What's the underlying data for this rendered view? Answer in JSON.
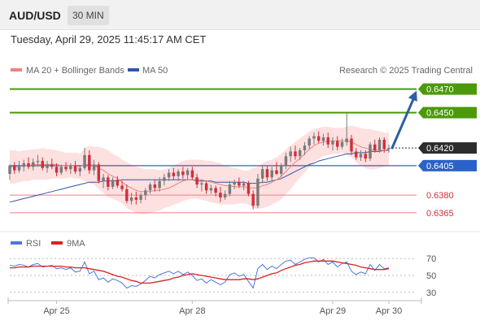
{
  "header": {
    "pair": "AUD/USD",
    "timeframe": "30 MIN",
    "timestamp": "Tuesday, April 29, 2025 11:45:17 AM CET"
  },
  "legend": {
    "ma20": "MA 20 + Bollinger Bands",
    "ma50": "MA 50",
    "source": "Research © 2025 Trading Central",
    "rsi": "RSI",
    "rsi_ma": "9MA"
  },
  "colors": {
    "ma20": "#f08080",
    "ma50": "#3355aa",
    "bollinger_fill": "#fde0e0",
    "resistance": "#4c9a0a",
    "support": "#f08080",
    "pivot": "#2b62c9",
    "last": "#2d2d2d",
    "candle_up": "#7a7a7a",
    "candle_down": "#d0303a",
    "arrow": "#2d5fa0",
    "rsi": "#4c78e0",
    "rsi_ma": "#dd2020"
  },
  "chart_data": [
    {
      "type": "candlestick",
      "instrument": "AUD/USD",
      "timeframe": "30 MIN",
      "x_labels": [
        "Apr 25",
        "Apr 28",
        "Apr 29",
        "Apr 30"
      ],
      "ylim": [
        0.6358,
        0.6478
      ],
      "levels": [
        {
          "label": "0.6470",
          "value": 0.647,
          "kind": "resistance"
        },
        {
          "label": "0.6450",
          "value": 0.645,
          "kind": "resistance"
        },
        {
          "label": "0.6420",
          "value": 0.642,
          "kind": "last"
        },
        {
          "label": "0.6405",
          "value": 0.6405,
          "kind": "pivot"
        },
        {
          "label": "0.6380",
          "value": 0.638,
          "kind": "support"
        },
        {
          "label": "0.6365",
          "value": 0.6365,
          "kind": "support"
        }
      ],
      "candles": [
        [
          0.6398,
          0.6406,
          0.6393,
          0.6405
        ],
        [
          0.6405,
          0.6408,
          0.6398,
          0.6401
        ],
        [
          0.6401,
          0.6409,
          0.6399,
          0.6404
        ],
        [
          0.6404,
          0.641,
          0.64,
          0.6407
        ],
        [
          0.6407,
          0.6412,
          0.6402,
          0.6404
        ],
        [
          0.6404,
          0.6411,
          0.6401,
          0.6408
        ],
        [
          0.6408,
          0.6414,
          0.6404,
          0.6409
        ],
        [
          0.6409,
          0.6412,
          0.6401,
          0.6403
        ],
        [
          0.6403,
          0.6409,
          0.6399,
          0.6406
        ],
        [
          0.6406,
          0.6411,
          0.6402,
          0.6404
        ],
        [
          0.6404,
          0.6407,
          0.6396,
          0.6399
        ],
        [
          0.6399,
          0.6406,
          0.6397,
          0.6404
        ],
        [
          0.6404,
          0.6408,
          0.64,
          0.6402
        ],
        [
          0.6402,
          0.6407,
          0.6398,
          0.6405
        ],
        [
          0.6405,
          0.6409,
          0.6398,
          0.64
        ],
        [
          0.64,
          0.6405,
          0.6396,
          0.6403
        ],
        [
          0.6403,
          0.642,
          0.6401,
          0.6414
        ],
        [
          0.6414,
          0.6418,
          0.6398,
          0.6401
        ],
        [
          0.6401,
          0.641,
          0.6397,
          0.6406
        ],
        [
          0.6406,
          0.6408,
          0.639,
          0.6392
        ],
        [
          0.6392,
          0.6398,
          0.6386,
          0.6395
        ],
        [
          0.6395,
          0.6397,
          0.6384,
          0.6387
        ],
        [
          0.6387,
          0.6395,
          0.6385,
          0.6393
        ],
        [
          0.6393,
          0.6396,
          0.6386,
          0.6388
        ],
        [
          0.6388,
          0.6392,
          0.6383,
          0.6385
        ],
        [
          0.6385,
          0.6389,
          0.6373,
          0.6375
        ],
        [
          0.6375,
          0.6382,
          0.6372,
          0.6378
        ],
        [
          0.6378,
          0.6383,
          0.6372,
          0.6376
        ],
        [
          0.6376,
          0.6382,
          0.6373,
          0.638
        ],
        [
          0.638,
          0.6386,
          0.6376,
          0.6384
        ],
        [
          0.6384,
          0.6391,
          0.6381,
          0.6389
        ],
        [
          0.6389,
          0.6393,
          0.6383,
          0.6386
        ],
        [
          0.6386,
          0.6395,
          0.6383,
          0.6392
        ],
        [
          0.6392,
          0.6398,
          0.6388,
          0.6395
        ],
        [
          0.6395,
          0.6402,
          0.6392,
          0.6399
        ],
        [
          0.6399,
          0.6403,
          0.6393,
          0.6396
        ],
        [
          0.6396,
          0.6402,
          0.6392,
          0.64
        ],
        [
          0.64,
          0.6404,
          0.6394,
          0.6397
        ],
        [
          0.6397,
          0.6403,
          0.6393,
          0.6401
        ],
        [
          0.6401,
          0.6404,
          0.6393,
          0.6395
        ],
        [
          0.6395,
          0.6398,
          0.6386,
          0.6389
        ],
        [
          0.6389,
          0.6393,
          0.6383,
          0.639
        ],
        [
          0.639,
          0.6392,
          0.6381,
          0.6384
        ],
        [
          0.6384,
          0.6389,
          0.6381,
          0.6386
        ],
        [
          0.6386,
          0.6388,
          0.6379,
          0.6382
        ],
        [
          0.6382,
          0.6387,
          0.6374,
          0.6378
        ],
        [
          0.6378,
          0.6384,
          0.6376,
          0.6381
        ],
        [
          0.6381,
          0.6392,
          0.6379,
          0.6389
        ],
        [
          0.6389,
          0.6393,
          0.6385,
          0.6391
        ],
        [
          0.6391,
          0.6395,
          0.6386,
          0.6388
        ],
        [
          0.6388,
          0.6392,
          0.6384,
          0.639
        ],
        [
          0.639,
          0.6392,
          0.6379,
          0.6381
        ],
        [
          0.6381,
          0.6384,
          0.6368,
          0.6371
        ],
        [
          0.6371,
          0.6398,
          0.6369,
          0.6394
        ],
        [
          0.6394,
          0.6405,
          0.639,
          0.6402
        ],
        [
          0.6402,
          0.6405,
          0.6392,
          0.6395
        ],
        [
          0.6395,
          0.6404,
          0.6392,
          0.6401
        ],
        [
          0.6401,
          0.6408,
          0.6397,
          0.6398
        ],
        [
          0.6398,
          0.6407,
          0.6395,
          0.6405
        ],
        [
          0.6405,
          0.6416,
          0.6402,
          0.6413
        ],
        [
          0.6413,
          0.6421,
          0.6408,
          0.6417
        ],
        [
          0.6417,
          0.6422,
          0.641,
          0.6413
        ],
        [
          0.6413,
          0.642,
          0.641,
          0.6418
        ],
        [
          0.6418,
          0.6425,
          0.6414,
          0.6422
        ],
        [
          0.6422,
          0.643,
          0.6419,
          0.6428
        ],
        [
          0.6428,
          0.6433,
          0.6423,
          0.643
        ],
        [
          0.643,
          0.6434,
          0.6424,
          0.6426
        ],
        [
          0.6426,
          0.6432,
          0.6422,
          0.6429
        ],
        [
          0.6429,
          0.6433,
          0.642,
          0.6423
        ],
        [
          0.6423,
          0.6429,
          0.6418,
          0.6426
        ],
        [
          0.6426,
          0.643,
          0.6418,
          0.6421
        ],
        [
          0.6421,
          0.6428,
          0.6419,
          0.6425
        ],
        [
          0.6425,
          0.645,
          0.6422,
          0.6428
        ],
        [
          0.6428,
          0.6431,
          0.6414,
          0.6417
        ],
        [
          0.6417,
          0.642,
          0.641,
          0.6412
        ],
        [
          0.6412,
          0.6418,
          0.6409,
          0.6415
        ],
        [
          0.6415,
          0.6418,
          0.6408,
          0.6411
        ],
        [
          0.6411,
          0.6425,
          0.6409,
          0.6423
        ],
        [
          0.6423,
          0.6427,
          0.6416,
          0.6418
        ],
        [
          0.6418,
          0.6429,
          0.6416,
          0.6427
        ],
        [
          0.6427,
          0.6429,
          0.6416,
          0.6419
        ],
        [
          0.6419,
          0.6423,
          0.6416,
          0.642
        ]
      ],
      "bollinger_upper": [
        0.6418,
        0.6418,
        0.6417,
        0.6418,
        0.6418,
        0.6419,
        0.6419,
        0.642,
        0.6419,
        0.6419,
        0.6418,
        0.6417,
        0.6416,
        0.6416,
        0.6416,
        0.6415,
        0.642,
        0.6422,
        0.6421,
        0.6421,
        0.642,
        0.6418,
        0.6415,
        0.6413,
        0.641,
        0.6408,
        0.6406,
        0.6404,
        0.6403,
        0.6402,
        0.6402,
        0.6402,
        0.6401,
        0.6402,
        0.6403,
        0.6405,
        0.6407,
        0.6409,
        0.641,
        0.641,
        0.641,
        0.641,
        0.6409,
        0.6409,
        0.6408,
        0.6407,
        0.6405,
        0.6404,
        0.6403,
        0.6402,
        0.6401,
        0.6401,
        0.6403,
        0.6404,
        0.6407,
        0.6409,
        0.641,
        0.6412,
        0.6415,
        0.6419,
        0.6422,
        0.6425,
        0.6428,
        0.6431,
        0.6434,
        0.6436,
        0.6437,
        0.6438,
        0.6438,
        0.6437,
        0.6437,
        0.6437,
        0.6438,
        0.6439,
        0.6438,
        0.6437,
        0.6436,
        0.6436,
        0.6435,
        0.6434,
        0.6433,
        0.6433
      ],
      "bollinger_lower": [
        0.639,
        0.639,
        0.6391,
        0.6392,
        0.6392,
        0.6393,
        0.6393,
        0.6393,
        0.6393,
        0.6394,
        0.6394,
        0.6394,
        0.6394,
        0.6395,
        0.6394,
        0.6394,
        0.6392,
        0.639,
        0.6389,
        0.6385,
        0.6382,
        0.6378,
        0.6377,
        0.6375,
        0.6373,
        0.6369,
        0.6367,
        0.6365,
        0.6364,
        0.6364,
        0.6365,
        0.6366,
        0.6367,
        0.6369,
        0.637,
        0.6372,
        0.6373,
        0.6375,
        0.6376,
        0.6377,
        0.6377,
        0.6376,
        0.6375,
        0.6374,
        0.6373,
        0.6372,
        0.6372,
        0.6372,
        0.6372,
        0.6373,
        0.6373,
        0.6372,
        0.6369,
        0.6368,
        0.6369,
        0.637,
        0.6372,
        0.6374,
        0.6376,
        0.6381,
        0.6385,
        0.639,
        0.6395,
        0.6399,
        0.6404,
        0.6408,
        0.6411,
        0.6413,
        0.6414,
        0.6415,
        0.6415,
        0.6416,
        0.6414,
        0.6412,
        0.6408,
        0.6405,
        0.6403,
        0.6402,
        0.6402,
        0.6403,
        0.6404,
        0.6405
      ],
      "ma20": [
        0.6404,
        0.6404,
        0.6404,
        0.6405,
        0.6405,
        0.6406,
        0.6406,
        0.6406,
        0.6406,
        0.6406,
        0.6406,
        0.6405,
        0.6405,
        0.6405,
        0.6405,
        0.6404,
        0.6406,
        0.6406,
        0.6405,
        0.6403,
        0.6401,
        0.6398,
        0.6396,
        0.6394,
        0.6391,
        0.6388,
        0.6386,
        0.6384,
        0.6383,
        0.6383,
        0.6383,
        0.6384,
        0.6384,
        0.6385,
        0.6386,
        0.6388,
        0.639,
        0.6392,
        0.6393,
        0.6393,
        0.6393,
        0.6393,
        0.6392,
        0.6391,
        0.639,
        0.6389,
        0.6388,
        0.6388,
        0.6387,
        0.6387,
        0.6387,
        0.6386,
        0.6386,
        0.6386,
        0.6388,
        0.6389,
        0.6391,
        0.6393,
        0.6396,
        0.64,
        0.6404,
        0.6408,
        0.6411,
        0.6415,
        0.6419,
        0.6422,
        0.6424,
        0.6425,
        0.6426,
        0.6426,
        0.6426,
        0.6426,
        0.6426,
        0.6425,
        0.6423,
        0.6421,
        0.642,
        0.6419,
        0.6418,
        0.6418,
        0.6418,
        0.6419
      ],
      "ma50": [
        0.6374,
        0.6375,
        0.6376,
        0.6377,
        0.6378,
        0.6379,
        0.638,
        0.6381,
        0.6382,
        0.6383,
        0.6384,
        0.6385,
        0.6386,
        0.6387,
        0.6388,
        0.6389,
        0.639,
        0.6391,
        0.6391,
        0.6391,
        0.6392,
        0.6392,
        0.6392,
        0.6392,
        0.6393,
        0.6393,
        0.6393,
        0.6393,
        0.6393,
        0.6393,
        0.6393,
        0.6393,
        0.6393,
        0.6393,
        0.6393,
        0.6393,
        0.6393,
        0.6393,
        0.6393,
        0.6393,
        0.6392,
        0.6392,
        0.6392,
        0.6392,
        0.6391,
        0.6391,
        0.6391,
        0.6391,
        0.6391,
        0.6391,
        0.6391,
        0.639,
        0.639,
        0.639,
        0.6391,
        0.6391,
        0.6392,
        0.6393,
        0.6394,
        0.6396,
        0.6398,
        0.64,
        0.6402,
        0.6404,
        0.6406,
        0.6407,
        0.6409,
        0.641,
        0.6411,
        0.6412,
        0.6413,
        0.6414,
        0.6415,
        0.6415,
        0.6416,
        0.6416,
        0.6416,
        0.6417,
        0.6417,
        0.6417,
        0.6418,
        0.6418
      ],
      "projection": {
        "from": 0.642,
        "to": 0.647
      }
    },
    {
      "type": "line",
      "name": "RSI",
      "ylim": [
        25,
        75
      ],
      "yticks": [
        "70",
        "50",
        "30"
      ],
      "series": [
        {
          "name": "RSI",
          "values": [
            62,
            61,
            63,
            62,
            60,
            63,
            64,
            60,
            61,
            62,
            58,
            59,
            57,
            59,
            54,
            55,
            66,
            52,
            55,
            45,
            47,
            42,
            46,
            44,
            41,
            35,
            38,
            37,
            40,
            44,
            49,
            47,
            51,
            53,
            55,
            52,
            55,
            51,
            54,
            50,
            44,
            46,
            41,
            45,
            42,
            39,
            42,
            51,
            53,
            49,
            51,
            43,
            35,
            58,
            63,
            57,
            61,
            58,
            63,
            67,
            68,
            63,
            66,
            69,
            71,
            71,
            66,
            69,
            63,
            66,
            60,
            64,
            66,
            55,
            51,
            54,
            52,
            63,
            56,
            63,
            58,
            59
          ]
        },
        {
          "name": "9MA",
          "values": [
            59,
            59,
            60,
            60,
            60,
            61,
            61,
            61,
            61,
            61,
            61,
            61,
            60,
            60,
            59,
            59,
            59,
            58,
            57,
            56,
            55,
            53,
            51,
            49,
            48,
            46,
            44,
            43,
            41,
            41,
            41,
            42,
            43,
            44,
            45,
            47,
            48,
            50,
            51,
            52,
            51,
            50,
            49,
            48,
            47,
            46,
            45,
            45,
            45,
            45,
            46,
            46,
            45,
            46,
            48,
            50,
            52,
            53,
            56,
            58,
            60,
            62,
            63,
            65,
            66,
            67,
            67,
            67,
            67,
            67,
            66,
            65,
            64,
            63,
            62,
            60,
            59,
            58,
            57,
            57,
            57,
            58
          ]
        }
      ]
    }
  ]
}
